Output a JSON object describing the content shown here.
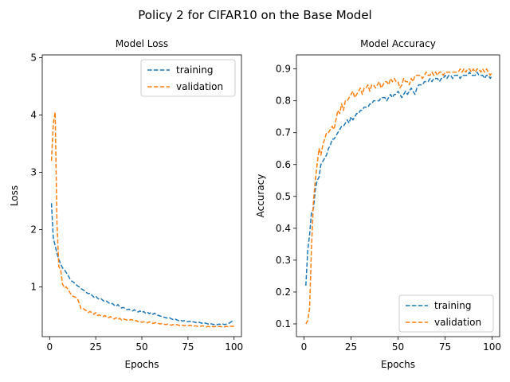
{
  "figure": {
    "title": "Policy 2 for CIFAR10 on the Base Model"
  },
  "chart_data": [
    {
      "type": "line",
      "title": "Model Loss",
      "xlabel": "Epochs",
      "ylabel": "Loss",
      "xlim": [
        -4,
        104
      ],
      "ylim": [
        0.13,
        5.05
      ],
      "xticks": [
        0,
        25,
        50,
        75,
        100
      ],
      "yticks": [
        1,
        2,
        3,
        4,
        5
      ],
      "legend_position": "top-right",
      "grid": false,
      "x_start": 1,
      "series": [
        {
          "name": "training",
          "color": "#1f77b4",
          "style": "dashed",
          "values": [
            2.46,
            1.85,
            1.72,
            1.58,
            1.48,
            1.4,
            1.33,
            1.3,
            1.25,
            1.2,
            1.14,
            1.1,
            1.08,
            1.05,
            1.02,
            1.0,
            0.97,
            0.95,
            0.93,
            0.9,
            0.88,
            0.89,
            0.85,
            0.82,
            0.84,
            0.8,
            0.78,
            0.79,
            0.76,
            0.74,
            0.75,
            0.72,
            0.7,
            0.71,
            0.68,
            0.66,
            0.69,
            0.65,
            0.63,
            0.64,
            0.62,
            0.6,
            0.61,
            0.59,
            0.58,
            0.6,
            0.57,
            0.56,
            0.58,
            0.55,
            0.57,
            0.54,
            0.56,
            0.53,
            0.55,
            0.52,
            0.54,
            0.51,
            0.5,
            0.49,
            0.48,
            0.47,
            0.46,
            0.45,
            0.46,
            0.44,
            0.43,
            0.44,
            0.42,
            0.41,
            0.42,
            0.4,
            0.41,
            0.4,
            0.39,
            0.4,
            0.38,
            0.39,
            0.38,
            0.37,
            0.38,
            0.37,
            0.36,
            0.37,
            0.36,
            0.35,
            0.36,
            0.35,
            0.34,
            0.35,
            0.34,
            0.35,
            0.34,
            0.35,
            0.34,
            0.35,
            0.36,
            0.38,
            0.4,
            0.39
          ]
        },
        {
          "name": "validation",
          "color": "#ff7f0e",
          "style": "dashed",
          "values": [
            3.2,
            3.85,
            4.05,
            2.1,
            1.35,
            1.3,
            1.05,
            0.98,
            1.0,
            0.95,
            0.9,
            0.85,
            0.83,
            0.82,
            0.8,
            0.72,
            0.62,
            0.63,
            0.6,
            0.58,
            0.55,
            0.57,
            0.54,
            0.52,
            0.55,
            0.5,
            0.51,
            0.49,
            0.48,
            0.5,
            0.47,
            0.46,
            0.48,
            0.45,
            0.44,
            0.46,
            0.43,
            0.45,
            0.42,
            0.44,
            0.43,
            0.42,
            0.41,
            0.43,
            0.42,
            0.4,
            0.41,
            0.39,
            0.4,
            0.38,
            0.39,
            0.38,
            0.37,
            0.39,
            0.37,
            0.36,
            0.37,
            0.38,
            0.36,
            0.35,
            0.36,
            0.35,
            0.34,
            0.35,
            0.34,
            0.33,
            0.34,
            0.33,
            0.34,
            0.33,
            0.32,
            0.33,
            0.32,
            0.33,
            0.32,
            0.33,
            0.32,
            0.31,
            0.32,
            0.31,
            0.32,
            0.31,
            0.32,
            0.31,
            0.3,
            0.31,
            0.3,
            0.31,
            0.3,
            0.31,
            0.3,
            0.31,
            0.3,
            0.31,
            0.3,
            0.31,
            0.3,
            0.31,
            0.31,
            0.31
          ]
        }
      ]
    },
    {
      "type": "line",
      "title": "Model Accuracy",
      "xlabel": "Epochs",
      "ylabel": "Accuracy",
      "xlim": [
        -4,
        104
      ],
      "ylim": [
        0.06,
        0.944
      ],
      "xticks": [
        0,
        25,
        50,
        75,
        100
      ],
      "yticks": [
        0.1,
        0.2,
        0.3,
        0.4,
        0.5,
        0.6,
        0.7,
        0.8,
        0.9
      ],
      "legend_position": "bottom-right",
      "grid": false,
      "x_start": 1,
      "series": [
        {
          "name": "training",
          "color": "#1f77b4",
          "style": "dashed",
          "values": [
            0.22,
            0.33,
            0.38,
            0.45,
            0.46,
            0.52,
            0.55,
            0.56,
            0.6,
            0.61,
            0.62,
            0.63,
            0.65,
            0.66,
            0.68,
            0.68,
            0.69,
            0.7,
            0.71,
            0.72,
            0.72,
            0.73,
            0.74,
            0.73,
            0.75,
            0.74,
            0.75,
            0.76,
            0.76,
            0.77,
            0.77,
            0.78,
            0.78,
            0.78,
            0.79,
            0.79,
            0.8,
            0.8,
            0.8,
            0.8,
            0.81,
            0.81,
            0.81,
            0.8,
            0.81,
            0.82,
            0.81,
            0.82,
            0.82,
            0.83,
            0.82,
            0.81,
            0.82,
            0.83,
            0.82,
            0.83,
            0.84,
            0.83,
            0.82,
            0.84,
            0.85,
            0.85,
            0.85,
            0.86,
            0.86,
            0.86,
            0.87,
            0.86,
            0.87,
            0.87,
            0.87,
            0.86,
            0.87,
            0.87,
            0.88,
            0.87,
            0.88,
            0.88,
            0.87,
            0.88,
            0.88,
            0.88,
            0.87,
            0.88,
            0.88,
            0.88,
            0.88,
            0.89,
            0.88,
            0.88,
            0.88,
            0.89,
            0.88,
            0.88,
            0.88,
            0.87,
            0.88,
            0.88,
            0.87,
            0.88
          ]
        },
        {
          "name": "validation",
          "color": "#ff7f0e",
          "style": "dashed",
          "values": [
            0.1,
            0.11,
            0.15,
            0.34,
            0.48,
            0.55,
            0.6,
            0.65,
            0.63,
            0.66,
            0.68,
            0.7,
            0.7,
            0.71,
            0.72,
            0.71,
            0.74,
            0.77,
            0.76,
            0.79,
            0.77,
            0.8,
            0.8,
            0.81,
            0.82,
            0.83,
            0.81,
            0.82,
            0.83,
            0.84,
            0.82,
            0.84,
            0.84,
            0.85,
            0.83,
            0.85,
            0.85,
            0.84,
            0.85,
            0.86,
            0.84,
            0.85,
            0.86,
            0.86,
            0.85,
            0.87,
            0.86,
            0.87,
            0.86,
            0.86,
            0.84,
            0.85,
            0.87,
            0.86,
            0.86,
            0.85,
            0.87,
            0.86,
            0.88,
            0.88,
            0.88,
            0.88,
            0.87,
            0.88,
            0.89,
            0.88,
            0.88,
            0.89,
            0.88,
            0.89,
            0.88,
            0.89,
            0.89,
            0.88,
            0.89,
            0.89,
            0.89,
            0.89,
            0.89,
            0.89,
            0.89,
            0.89,
            0.9,
            0.89,
            0.9,
            0.89,
            0.9,
            0.9,
            0.89,
            0.9,
            0.89,
            0.9,
            0.9,
            0.89,
            0.9,
            0.89,
            0.9,
            0.89,
            0.88,
            0.89
          ]
        }
      ]
    }
  ]
}
